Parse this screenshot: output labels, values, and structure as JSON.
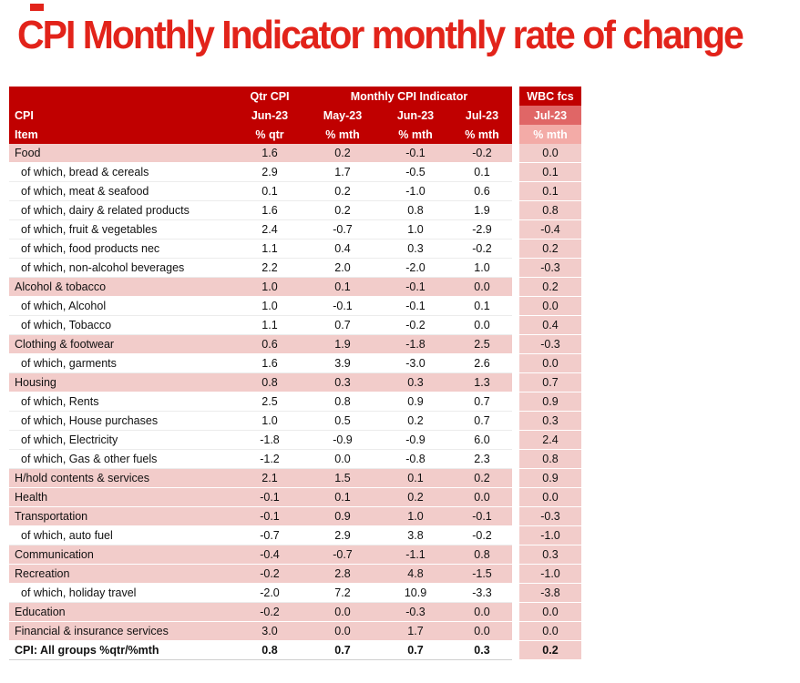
{
  "colors": {
    "page_bg": "#FFFFFF",
    "title_red": "#E2231A",
    "header_red": "#C00000",
    "wbc_mid_red": "#E06666",
    "wbc_light_pink": "#F3ABA7",
    "row_pink": "#F2CCCA"
  },
  "chart_data": {
    "type": "table",
    "title": "CPI Monthly Indicator monthly rate of change",
    "header": {
      "qtr_group": "Qtr CPI",
      "monthly_group": "Monthly CPI Indicator",
      "wbc_group": "WBC fcs",
      "row_label_line1": "CPI",
      "row_label_line2": "Item",
      "periods": [
        "Jun-23",
        "May-23",
        "Jun-23",
        "Jul-23",
        "Jul-23"
      ],
      "units": [
        "% qtr",
        "% mth",
        "% mth",
        "% mth",
        "% mth"
      ]
    },
    "rows": [
      {
        "label": "Food",
        "style": "category",
        "values": [
          "1.6",
          "0.2",
          "-0.1",
          "-0.2",
          "0.0"
        ]
      },
      {
        "label": "of which, bread & cereals",
        "style": "sub",
        "values": [
          "2.9",
          "1.7",
          "-0.5",
          "0.1",
          "0.1"
        ]
      },
      {
        "label": "of which, meat & seafood",
        "style": "sub",
        "values": [
          "0.1",
          "0.2",
          "-1.0",
          "0.6",
          "0.1"
        ]
      },
      {
        "label": "of which, dairy & related products",
        "style": "sub",
        "values": [
          "1.6",
          "0.2",
          "0.8",
          "1.9",
          "0.8"
        ]
      },
      {
        "label": "of which, fruit & vegetables",
        "style": "sub",
        "values": [
          "2.4",
          "-0.7",
          "1.0",
          "-2.9",
          "-0.4"
        ]
      },
      {
        "label": "of which, food products nec",
        "style": "sub",
        "values": [
          "1.1",
          "0.4",
          "0.3",
          "-0.2",
          "0.2"
        ]
      },
      {
        "label": "of which, non-alcohol beverages",
        "style": "sub",
        "values": [
          "2.2",
          "2.0",
          "-2.0",
          "1.0",
          "-0.3"
        ]
      },
      {
        "label": "Alcohol & tobacco",
        "style": "category",
        "values": [
          "1.0",
          "0.1",
          "-0.1",
          "0.0",
          "0.2"
        ]
      },
      {
        "label": "of which, Alcohol",
        "style": "sub",
        "values": [
          "1.0",
          "-0.1",
          "-0.1",
          "0.1",
          "0.0"
        ]
      },
      {
        "label": "of which, Tobacco",
        "style": "sub",
        "values": [
          "1.1",
          "0.7",
          "-0.2",
          "0.0",
          "0.4"
        ]
      },
      {
        "label": "Clothing & footwear",
        "style": "category",
        "values": [
          "0.6",
          "1.9",
          "-1.8",
          "2.5",
          "-0.3"
        ]
      },
      {
        "label": "of which, garments",
        "style": "sub",
        "values": [
          "1.6",
          "3.9",
          "-3.0",
          "2.6",
          "0.0"
        ]
      },
      {
        "label": "Housing",
        "style": "category",
        "values": [
          "0.8",
          "0.3",
          "0.3",
          "1.3",
          "0.7"
        ]
      },
      {
        "label": "of which, Rents",
        "style": "sub",
        "values": [
          "2.5",
          "0.8",
          "0.9",
          "0.7",
          "0.9"
        ]
      },
      {
        "label": "of which, House purchases",
        "style": "sub",
        "values": [
          "1.0",
          "0.5",
          "0.2",
          "0.7",
          "0.3"
        ]
      },
      {
        "label": "of which, Electricity",
        "style": "sub",
        "values": [
          "-1.8",
          "-0.9",
          "-0.9",
          "6.0",
          "2.4"
        ]
      },
      {
        "label": "of which, Gas & other fuels",
        "style": "sub",
        "values": [
          "-1.2",
          "0.0",
          "-0.8",
          "2.3",
          "0.8"
        ]
      },
      {
        "label": "H/hold contents & services",
        "style": "category",
        "values": [
          "2.1",
          "1.5",
          "0.1",
          "0.2",
          "0.9"
        ]
      },
      {
        "label": "Health",
        "style": "category",
        "values": [
          "-0.1",
          "0.1",
          "0.2",
          "0.0",
          "0.0"
        ]
      },
      {
        "label": "Transportation",
        "style": "category",
        "values": [
          "-0.1",
          "0.9",
          "1.0",
          "-0.1",
          "-0.3"
        ]
      },
      {
        "label": "of which, auto fuel",
        "style": "sub",
        "values": [
          "-0.7",
          "2.9",
          "3.8",
          "-0.2",
          "-1.0"
        ]
      },
      {
        "label": "Communication",
        "style": "category",
        "values": [
          "-0.4",
          "-0.7",
          "-1.1",
          "0.8",
          "0.3"
        ]
      },
      {
        "label": "Recreation",
        "style": "category",
        "values": [
          "-0.2",
          "2.8",
          "4.8",
          "-1.5",
          "-1.0"
        ]
      },
      {
        "label": "of which, holiday travel",
        "style": "sub",
        "values": [
          "-2.0",
          "7.2",
          "10.9",
          "-3.3",
          "-3.8"
        ]
      },
      {
        "label": "Education",
        "style": "category",
        "values": [
          "-0.2",
          "0.0",
          "-0.3",
          "0.0",
          "0.0"
        ]
      },
      {
        "label": "Financial & insurance services",
        "style": "category",
        "values": [
          "3.0",
          "0.0",
          "1.7",
          "0.0",
          "0.0"
        ]
      },
      {
        "label": "CPI: All groups %qtr/%mth",
        "style": "total",
        "values": [
          "0.8",
          "0.7",
          "0.7",
          "0.3",
          "0.2"
        ]
      }
    ]
  }
}
